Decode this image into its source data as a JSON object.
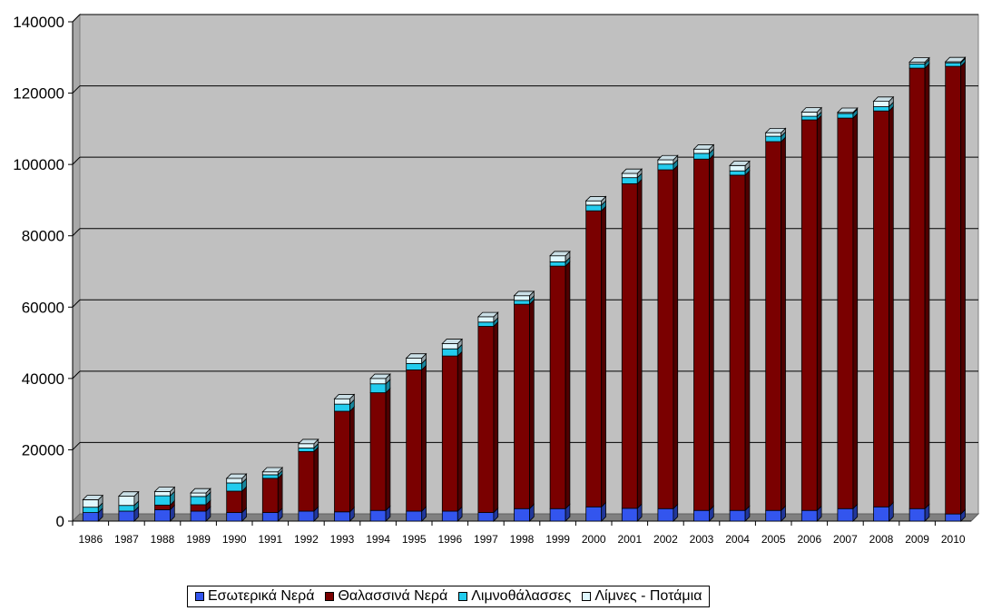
{
  "chart_data": {
    "type": "bar",
    "stacked": true,
    "three_d": true,
    "categories": [
      "1986",
      "1987",
      "1988",
      "1989",
      "1990",
      "1991",
      "1992",
      "1993",
      "1994",
      "1995",
      "1996",
      "1997",
      "1998",
      "1999",
      "2000",
      "2001",
      "2002",
      "2003",
      "2004",
      "2005",
      "2006",
      "2007",
      "2008",
      "2009",
      "2010"
    ],
    "series": [
      {
        "name": "Εσωτερικά Νερά",
        "color": "#3355ee",
        "values": [
          2400,
          2800,
          3200,
          2800,
          2400,
          2400,
          2800,
          2600,
          3000,
          2800,
          2800,
          2400,
          3500,
          3500,
          4000,
          3600,
          3500,
          3000,
          3000,
          3000,
          3000,
          3500,
          4000,
          3500,
          2000
        ]
      },
      {
        "name": "Θαλασσινά Νερά",
        "color": "#7a0000",
        "values": [
          0,
          0,
          1300,
          1800,
          6000,
          9600,
          16700,
          28200,
          33000,
          39600,
          43500,
          52200,
          57300,
          68000,
          83000,
          91000,
          95000,
          98500,
          94000,
          103400,
          109500,
          109500,
          111000,
          123500,
          125500
        ]
      },
      {
        "name": "Λιμνοθάλασσες",
        "color": "#22ccee",
        "values": [
          1500,
          1600,
          2600,
          2300,
          2300,
          1000,
          1000,
          2000,
          2500,
          1800,
          2000,
          1200,
          1100,
          1200,
          1600,
          1700,
          1600,
          1600,
          1200,
          1500,
          1000,
          1300,
          1200,
          1200,
          1000
        ]
      },
      {
        "name": "Λίμνες - Ποτάμια",
        "color": "#e0f8ff",
        "values": [
          2100,
          2600,
          1200,
          1000,
          1300,
          800,
          1200,
          1500,
          1500,
          1500,
          1500,
          1500,
          1300,
          1700,
          1200,
          1200,
          1200,
          1200,
          1500,
          1000,
          1200,
          300,
          1500,
          500,
          300
        ]
      }
    ],
    "ylim": [
      0,
      140000
    ],
    "yticks": [
      0,
      20000,
      40000,
      60000,
      80000,
      100000,
      120000,
      140000
    ],
    "grid": true,
    "legend_position": "bottom",
    "plot_background": "#c0c0c0",
    "title": "",
    "xlabel": "",
    "ylabel": ""
  }
}
